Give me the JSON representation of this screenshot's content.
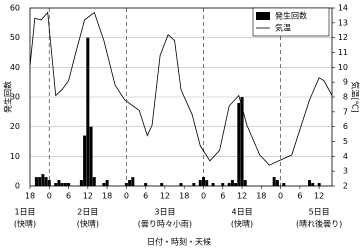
{
  "chart_data": {
    "type": "bar-line",
    "xlabel": "日付・時刻・天候",
    "ylabel": "発生回数",
    "y2label": "気温[℃]",
    "xlim": [
      0,
      94
    ],
    "xticks": [
      {
        "value": 0,
        "label": "18"
      },
      {
        "value": 6,
        "label": "0"
      },
      {
        "value": 12,
        "label": "6"
      },
      {
        "value": 18,
        "label": "12"
      },
      {
        "value": 24,
        "label": "18"
      },
      {
        "value": 30,
        "label": "0"
      },
      {
        "value": 36,
        "label": "6"
      },
      {
        "value": 42,
        "label": "12"
      },
      {
        "value": 48,
        "label": "18"
      },
      {
        "value": 54,
        "label": "0"
      },
      {
        "value": 60,
        "label": "6"
      },
      {
        "value": 66,
        "label": "12"
      },
      {
        "value": 72,
        "label": "18"
      },
      {
        "value": 78,
        "label": "0"
      },
      {
        "value": 84,
        "label": "6"
      },
      {
        "value": 90,
        "label": "12"
      }
    ],
    "day_boundaries": [
      6,
      30,
      54,
      78
    ],
    "days": [
      {
        "day": "1日目",
        "weather": "(快晴)"
      },
      {
        "day": "2日目",
        "weather": "(快晴)"
      },
      {
        "day": "3日目",
        "weather": "(曇り時々小雨)"
      },
      {
        "day": "4日目",
        "weather": "(快晴)"
      },
      {
        "day": "5日目",
        "weather": "(晴れ後曇り)"
      }
    ],
    "ylim": [
      0,
      60
    ],
    "yticks": [
      0,
      10,
      20,
      30,
      40,
      50,
      60
    ],
    "y2lim": [
      2,
      14
    ],
    "y2ticks": [
      2,
      3,
      4,
      5,
      6,
      7,
      8,
      9,
      10,
      11,
      12,
      13,
      14
    ],
    "grid": true,
    "legend": "upper right",
    "series": [
      {
        "name": "発生回数",
        "type": "bar",
        "color": "#000000",
        "x": [
          2,
          3,
          4,
          5,
          6,
          8,
          9,
          10,
          11,
          12,
          16,
          17,
          18,
          19,
          20,
          23,
          24,
          30,
          31,
          32,
          36,
          41,
          47,
          51,
          53,
          54,
          55,
          57,
          60,
          62,
          63,
          64,
          65,
          66,
          67,
          76,
          77,
          79,
          87,
          88,
          90
        ],
        "values": [
          3,
          3,
          4,
          3,
          2,
          1,
          2,
          1,
          1,
          1,
          2,
          17,
          50,
          20,
          3,
          1,
          2,
          1,
          2,
          3,
          1,
          1,
          1,
          1,
          2,
          3,
          2,
          1,
          1,
          1,
          2,
          1,
          28,
          30,
          2,
          3,
          2,
          1,
          2,
          1,
          1
        ]
      },
      {
        "name": "気温",
        "type": "line",
        "axis": "y2",
        "color": "#000000",
        "x": [
          0,
          1.5,
          3.5,
          5.5,
          8,
          10,
          12,
          14,
          17,
          20,
          23,
          26.5,
          29.5,
          34,
          36.5,
          38,
          40.5,
          43,
          45,
          47,
          50.5,
          53,
          56,
          59,
          62,
          65,
          67.5,
          71.5,
          74.5,
          77.5,
          81.5,
          84,
          87,
          90,
          91.5,
          94
        ],
        "values": [
          10.1,
          13.3,
          13.2,
          13.7,
          8.1,
          8.5,
          9.1,
          10.8,
          13.2,
          13.7,
          11.8,
          8.8,
          7.8,
          7.1,
          5.4,
          6.1,
          10.8,
          12.2,
          11.8,
          8.5,
          6.8,
          4.7,
          3.7,
          4.4,
          7.4,
          8.1,
          6.1,
          4.1,
          3.4,
          3.7,
          4.1,
          5.8,
          7.8,
          9.3,
          9.1,
          8.1
        ]
      }
    ]
  }
}
